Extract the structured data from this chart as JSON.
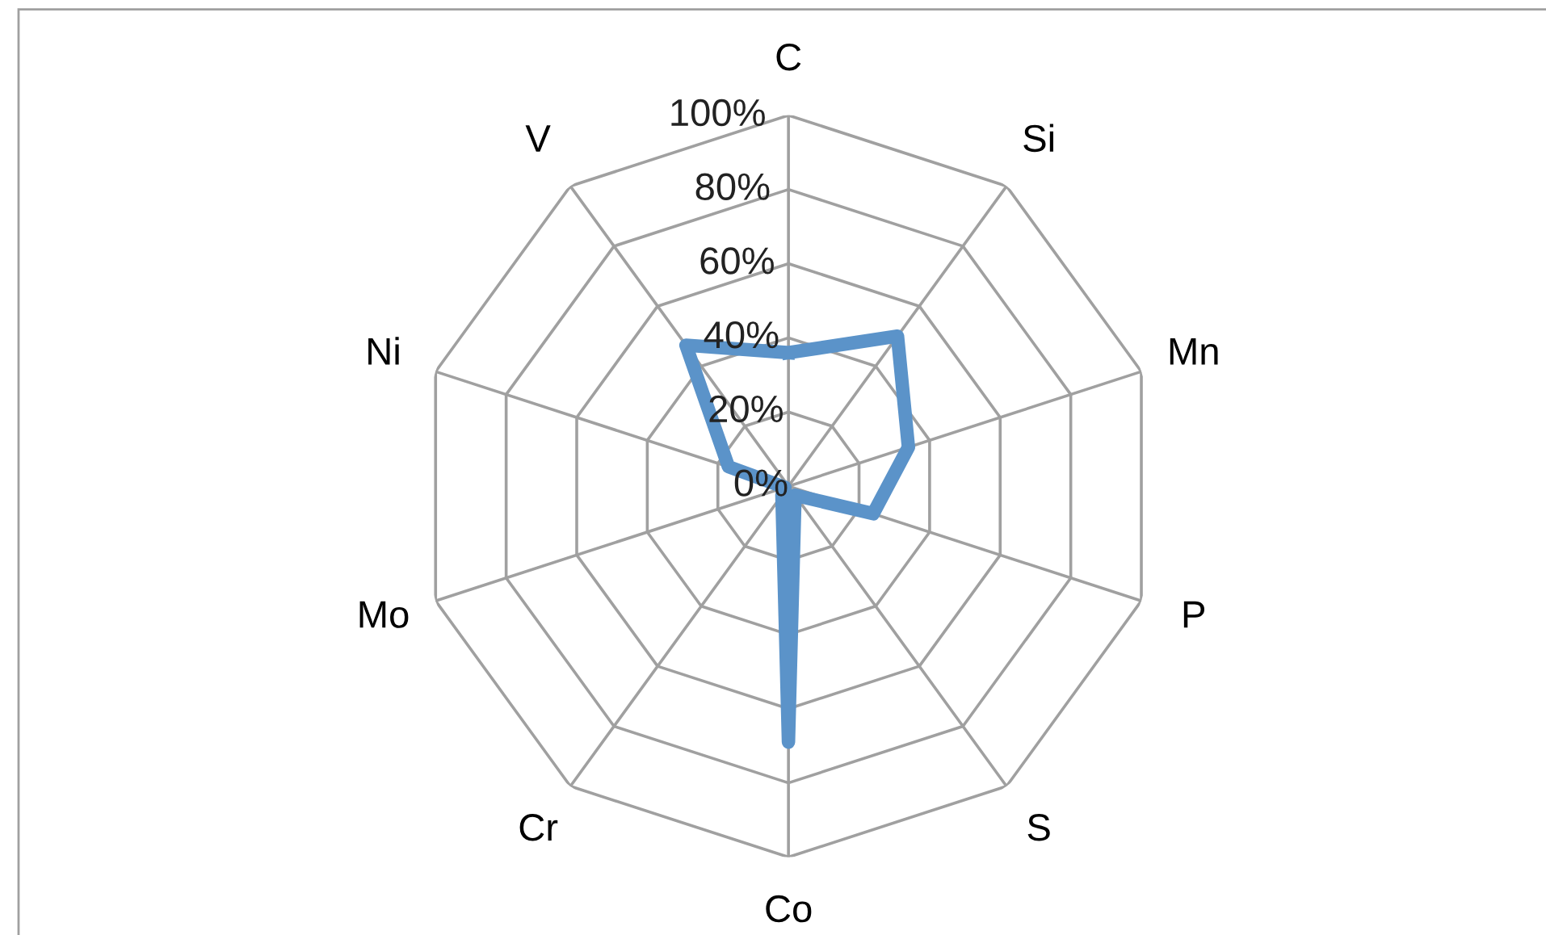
{
  "chart_data": {
    "type": "radar",
    "categories": [
      "C",
      "Si",
      "Mn",
      "P",
      "S",
      "Co",
      "Cr",
      "Mo",
      "Ni",
      "V"
    ],
    "series": [
      {
        "color": "#5b93c9",
        "values": [
          36,
          50,
          34,
          24,
          3,
          69,
          3,
          1,
          17,
          47
        ]
      }
    ],
    "ylim": [
      0,
      100
    ],
    "yticks": [
      {
        "value": 0,
        "label": "0%"
      },
      {
        "value": 20,
        "label": "20%"
      },
      {
        "value": 40,
        "label": "40%"
      },
      {
        "value": 60,
        "label": "60%"
      },
      {
        "value": 80,
        "label": "80%"
      },
      {
        "value": 100,
        "label": "100%"
      }
    ],
    "grid": true,
    "legend": false,
    "marker": "none",
    "line_style": "solid"
  }
}
